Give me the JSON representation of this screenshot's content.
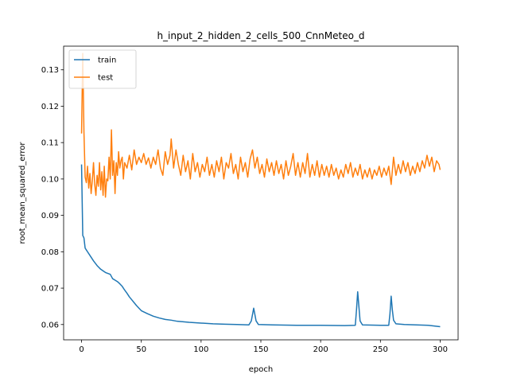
{
  "chart_data": {
    "type": "line",
    "title": "h_input_2_hidden_2_cells_500_CnnMeteo_d",
    "xlabel": "epoch",
    "ylabel": "root_mean_squared_error",
    "xlim": [
      -15,
      315
    ],
    "ylim": [
      0.0558,
      0.1365
    ],
    "xticks": [
      0,
      50,
      100,
      150,
      200,
      250,
      300
    ],
    "yticks": [
      0.06,
      0.07,
      0.08,
      0.09,
      0.1,
      0.11,
      0.12,
      0.13
    ],
    "ytick_labels": [
      "0.06",
      "0.07",
      "0.08",
      "0.09",
      "0.10",
      "0.11",
      "0.12",
      "0.13"
    ],
    "legend_position": "upper-left",
    "grid": false,
    "series": [
      {
        "name": "train",
        "color": "#1f77b4",
        "points": [
          [
            0,
            0.104
          ],
          [
            1,
            0.0845
          ],
          [
            2,
            0.0838
          ],
          [
            3,
            0.081
          ],
          [
            4,
            0.0805
          ],
          [
            5,
            0.08
          ],
          [
            7,
            0.079
          ],
          [
            10,
            0.0775
          ],
          [
            13,
            0.0762
          ],
          [
            16,
            0.0752
          ],
          [
            20,
            0.0743
          ],
          [
            24,
            0.0738
          ],
          [
            26,
            0.0726
          ],
          [
            28,
            0.0722
          ],
          [
            30,
            0.0718
          ],
          [
            32,
            0.0712
          ],
          [
            34,
            0.0705
          ],
          [
            36,
            0.0695
          ],
          [
            38,
            0.0686
          ],
          [
            40,
            0.0676
          ],
          [
            42,
            0.0668
          ],
          [
            44,
            0.066
          ],
          [
            46,
            0.0652
          ],
          [
            48,
            0.0645
          ],
          [
            50,
            0.0638
          ],
          [
            55,
            0.063
          ],
          [
            60,
            0.0623
          ],
          [
            65,
            0.0618
          ],
          [
            70,
            0.0614
          ],
          [
            75,
            0.0612
          ],
          [
            80,
            0.0609
          ],
          [
            90,
            0.0606
          ],
          [
            100,
            0.0604
          ],
          [
            110,
            0.0602
          ],
          [
            120,
            0.0601
          ],
          [
            130,
            0.06
          ],
          [
            140,
            0.0599
          ],
          [
            142,
            0.061
          ],
          [
            144,
            0.0645
          ],
          [
            146,
            0.061
          ],
          [
            148,
            0.06
          ],
          [
            160,
            0.0599
          ],
          [
            180,
            0.0598
          ],
          [
            200,
            0.0598
          ],
          [
            220,
            0.0597
          ],
          [
            229,
            0.0598
          ],
          [
            230,
            0.064
          ],
          [
            231,
            0.069
          ],
          [
            232,
            0.065
          ],
          [
            233,
            0.061
          ],
          [
            235,
            0.0599
          ],
          [
            250,
            0.0598
          ],
          [
            257,
            0.0598
          ],
          [
            258,
            0.063
          ],
          [
            259,
            0.0678
          ],
          [
            260,
            0.064
          ],
          [
            261,
            0.0612
          ],
          [
            263,
            0.0602
          ],
          [
            270,
            0.06
          ],
          [
            280,
            0.0599
          ],
          [
            290,
            0.0598
          ],
          [
            300,
            0.0594
          ]
        ]
      },
      {
        "name": "test",
        "color": "#ff7f0e",
        "points": [
          [
            0,
            0.1125
          ],
          [
            1,
            0.1345
          ],
          [
            2,
            0.113
          ],
          [
            3,
            0.1005
          ],
          [
            4,
            0.099
          ],
          [
            5,
            0.1035
          ],
          [
            6,
            0.0975
          ],
          [
            7,
            0.1015
          ],
          [
            8,
            0.096
          ],
          [
            9,
            0.0995
          ],
          [
            10,
            0.1045
          ],
          [
            11,
            0.0985
          ],
          [
            12,
            0.0955
          ],
          [
            13,
            0.101
          ],
          [
            14,
            0.098
          ],
          [
            15,
            0.1045
          ],
          [
            16,
            0.097
          ],
          [
            17,
            0.102
          ],
          [
            18,
            0.0955
          ],
          [
            19,
            0.1035
          ],
          [
            20,
            0.095
          ],
          [
            21,
            0.1
          ],
          [
            22,
            0.0995
          ],
          [
            23,
            0.106
          ],
          [
            24,
            0.1
          ],
          [
            25,
            0.1135
          ],
          [
            26,
            0.101
          ],
          [
            27,
            0.105
          ],
          [
            28,
            0.096
          ],
          [
            29,
            0.1045
          ],
          [
            30,
            0.101
          ],
          [
            31,
            0.1075
          ],
          [
            32,
            0.103
          ],
          [
            33,
            0.105
          ],
          [
            34,
            0.106
          ],
          [
            35,
            0.1
          ],
          [
            36,
            0.1045
          ],
          [
            38,
            0.103
          ],
          [
            40,
            0.1065
          ],
          [
            42,
            0.1025
          ],
          [
            44,
            0.108
          ],
          [
            46,
            0.104
          ],
          [
            48,
            0.106
          ],
          [
            50,
            0.1045
          ],
          [
            52,
            0.107
          ],
          [
            54,
            0.104
          ],
          [
            56,
            0.1058
          ],
          [
            58,
            0.103
          ],
          [
            60,
            0.106
          ],
          [
            62,
            0.104
          ],
          [
            64,
            0.108
          ],
          [
            66,
            0.103
          ],
          [
            68,
            0.101
          ],
          [
            70,
            0.1075
          ],
          [
            72,
            0.104
          ],
          [
            74,
            0.1065
          ],
          [
            75,
            0.111
          ],
          [
            77,
            0.103
          ],
          [
            79,
            0.108
          ],
          [
            81,
            0.104
          ],
          [
            83,
            0.101
          ],
          [
            85,
            0.1065
          ],
          [
            87,
            0.102
          ],
          [
            89,
            0.105
          ],
          [
            91,
            0.1
          ],
          [
            93,
            0.107
          ],
          [
            95,
            0.102
          ],
          [
            97,
            0.1045
          ],
          [
            99,
            0.1005
          ],
          [
            101,
            0.104
          ],
          [
            103,
            0.102
          ],
          [
            105,
            0.106
          ],
          [
            107,
            0.101
          ],
          [
            109,
            0.104
          ],
          [
            111,
            0.1005
          ],
          [
            113,
            0.105
          ],
          [
            115,
            0.102
          ],
          [
            117,
            0.106
          ],
          [
            119,
            0.1
          ],
          [
            121,
            0.1045
          ],
          [
            123,
            0.103
          ],
          [
            125,
            0.107
          ],
          [
            127,
            0.1015
          ],
          [
            129,
            0.104
          ],
          [
            131,
            0.1
          ],
          [
            133,
            0.106
          ],
          [
            135,
            0.102
          ],
          [
            137,
            0.1045
          ],
          [
            139,
            0.1005
          ],
          [
            141,
            0.1055
          ],
          [
            143,
            0.108
          ],
          [
            145,
            0.103
          ],
          [
            147,
            0.106
          ],
          [
            149,
            0.1015
          ],
          [
            151,
            0.104
          ],
          [
            153,
            0.1005
          ],
          [
            155,
            0.1055
          ],
          [
            157,
            0.102
          ],
          [
            159,
            0.1045
          ],
          [
            161,
            0.101
          ],
          [
            163,
            0.105
          ],
          [
            165,
            0.1015
          ],
          [
            167,
            0.104
          ],
          [
            169,
            0.1
          ],
          [
            171,
            0.105
          ],
          [
            173,
            0.101
          ],
          [
            175,
            0.1035
          ],
          [
            177,
            0.107
          ],
          [
            179,
            0.101
          ],
          [
            181,
            0.1045
          ],
          [
            183,
            0.1005
          ],
          [
            185,
            0.1045
          ],
          [
            187,
            0.1015
          ],
          [
            189,
            0.107
          ],
          [
            191,
            0.1005
          ],
          [
            193,
            0.104
          ],
          [
            195,
            0.101
          ],
          [
            197,
            0.105
          ],
          [
            199,
            0.1005
          ],
          [
            201,
            0.104
          ],
          [
            203,
            0.101
          ],
          [
            205,
            0.1035
          ],
          [
            207,
            0.1005
          ],
          [
            209,
            0.104
          ],
          [
            211,
            0.101
          ],
          [
            213,
            0.103
          ],
          [
            215,
            0.1
          ],
          [
            217,
            0.1025
          ],
          [
            219,
            0.1005
          ],
          [
            221,
            0.104
          ],
          [
            223,
            0.1015
          ],
          [
            225,
            0.1045
          ],
          [
            227,
            0.1005
          ],
          [
            229,
            0.103
          ],
          [
            231,
            0.101
          ],
          [
            233,
            0.104
          ],
          [
            235,
            0.1
          ],
          [
            237,
            0.1025
          ],
          [
            239,
            0.1005
          ],
          [
            241,
            0.103
          ],
          [
            243,
            0.1
          ],
          [
            245,
            0.1025
          ],
          [
            247,
            0.101
          ],
          [
            249,
            0.1035
          ],
          [
            251,
            0.1005
          ],
          [
            253,
            0.103
          ],
          [
            255,
            0.101
          ],
          [
            257,
            0.1035
          ],
          [
            259,
            0.0985
          ],
          [
            261,
            0.106
          ],
          [
            263,
            0.101
          ],
          [
            265,
            0.104
          ],
          [
            267,
            0.1015
          ],
          [
            269,
            0.105
          ],
          [
            271,
            0.102
          ],
          [
            273,
            0.1045
          ],
          [
            275,
            0.101
          ],
          [
            277,
            0.1035
          ],
          [
            279,
            0.1015
          ],
          [
            281,
            0.1045
          ],
          [
            283,
            0.102
          ],
          [
            285,
            0.105
          ],
          [
            287,
            0.103
          ],
          [
            289,
            0.1065
          ],
          [
            291,
            0.1035
          ],
          [
            293,
            0.106
          ],
          [
            295,
            0.102
          ],
          [
            297,
            0.105
          ],
          [
            299,
            0.104
          ],
          [
            300,
            0.1025
          ]
        ]
      }
    ]
  }
}
